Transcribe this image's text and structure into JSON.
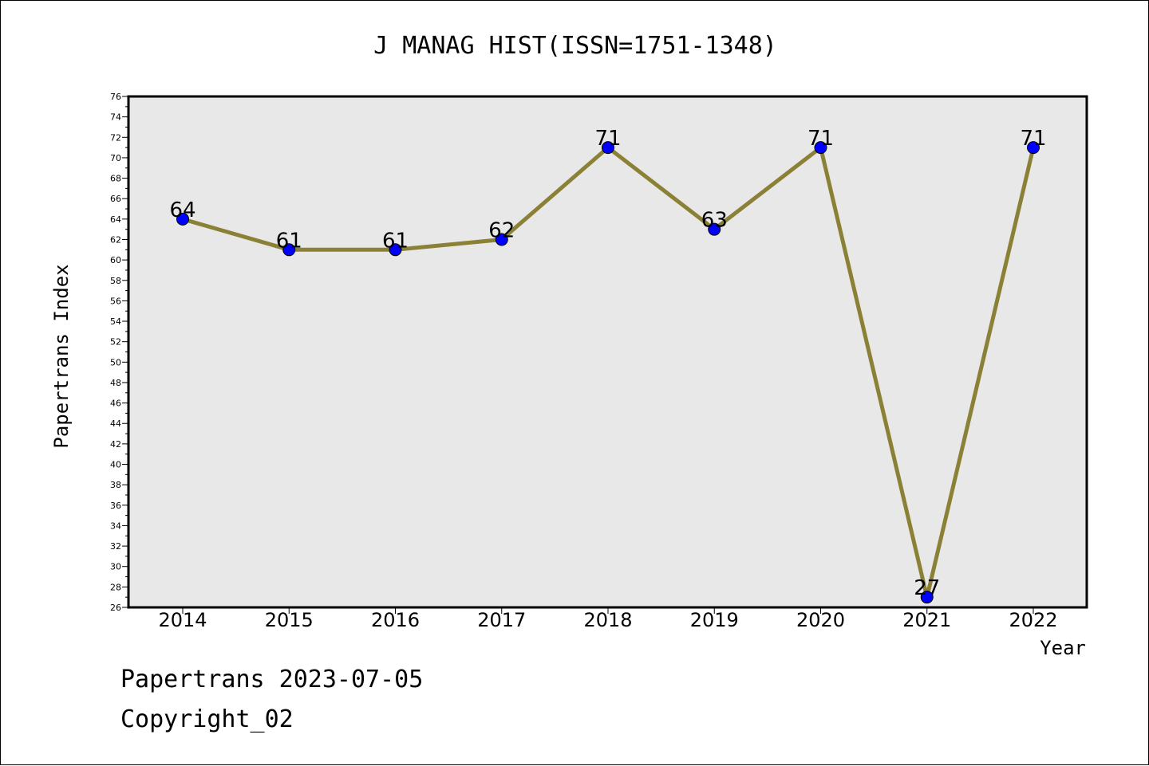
{
  "chart_data": {
    "type": "line",
    "title": "J MANAG HIST(ISSN=1751-1348)",
    "xlabel": "Year",
    "ylabel": "Papertrans Index",
    "categories": [
      "2014",
      "2015",
      "2016",
      "2017",
      "2018",
      "2019",
      "2020",
      "2021",
      "2022"
    ],
    "series": [
      {
        "values": [
          64,
          61,
          61,
          62,
          71,
          63,
          71,
          27,
          71
        ]
      }
    ],
    "value_labels": [
      "64",
      "61",
      "61",
      "62",
      "71",
      "63",
      "71",
      "27",
      "71"
    ],
    "ylim": [
      26,
      76
    ],
    "y_ticks": [
      "26",
      "28",
      "30",
      "32",
      "34",
      "36",
      "38",
      "40",
      "42",
      "44",
      "46",
      "48",
      "50",
      "52",
      "54",
      "56",
      "58",
      "60",
      "62",
      "64",
      "66",
      "68",
      "70",
      "72",
      "74",
      "76"
    ],
    "grid": false,
    "colors": {
      "line": "#8B8136",
      "marker": "#0000FF",
      "plot_background": "#E8E8E8"
    }
  },
  "footer": {
    "date_line": "Papertrans 2023-07-05",
    "copyright": "Copyright_02"
  }
}
